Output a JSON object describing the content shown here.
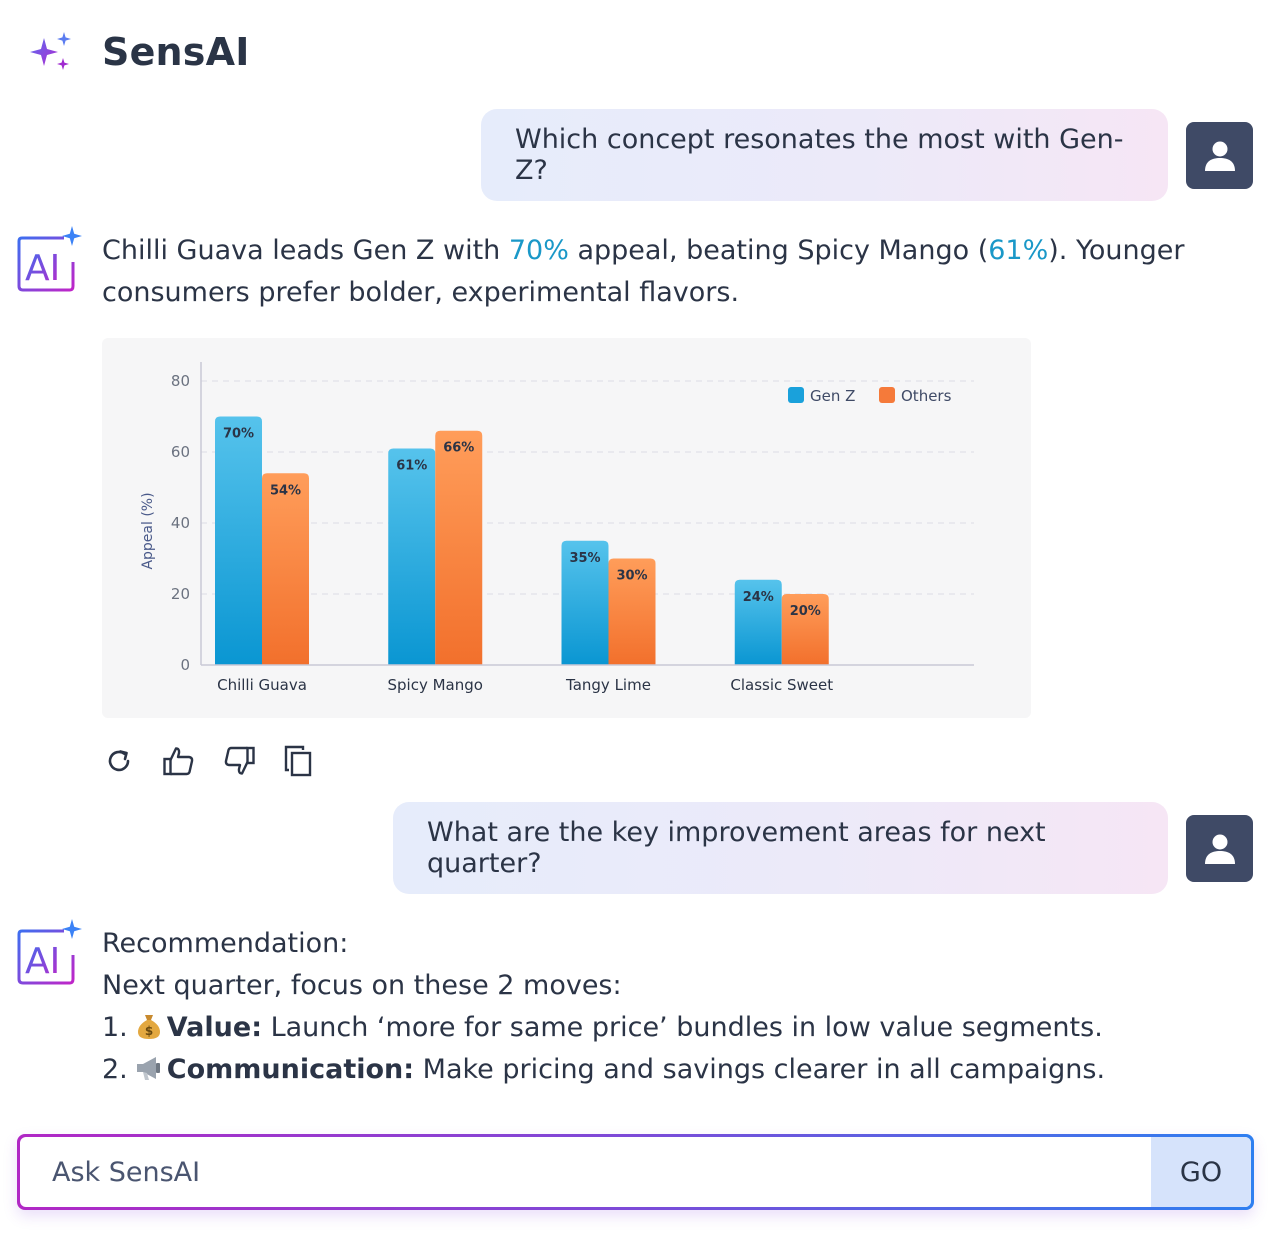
{
  "app": {
    "title": "SensAI"
  },
  "colors": {
    "accent_text": "#1a98c8",
    "gen_z": "#1aa1db",
    "others": "#f57a3a",
    "avatar_bg": "#3f4a66"
  },
  "conversation": {
    "q1": "Which concept resonates the most with Gen-Z?",
    "a1": {
      "part1": "Chilli Guava leads Gen Z with ",
      "pct1": "70%",
      "part2": " appeal, beating Spicy Mango (",
      "pct2": "61%",
      "part3": "). Younger consumers prefer bolder, experimental flavors."
    },
    "actions": [
      "refresh-icon",
      "thumbs-up-icon",
      "thumbs-down-icon",
      "copy-icon"
    ],
    "q2": "What are the key improvement areas for next quarter?",
    "a2": {
      "line1": "Recommendation:",
      "line2": "Next quarter, focus on these 2 moves:",
      "item1_num": "1.",
      "item1_bold": "Value:",
      "item1_text": " Launch ‘more for same price’ bundles in low value segments.",
      "item2_num": "2.",
      "item2_bold": "Communication:",
      "item2_text": " Make pricing and savings clearer in all campaigns."
    }
  },
  "input": {
    "placeholder": "Ask SensAI",
    "go_label": "GO"
  },
  "chart_data": {
    "type": "bar",
    "categories": [
      "Chilli Guava",
      "Spicy Mango",
      "Tangy Lime",
      "Classic Sweet"
    ],
    "series": [
      {
        "name": "Gen Z",
        "values": [
          70,
          61,
          35,
          24
        ],
        "labels": [
          "70%",
          "61%",
          "35%",
          "24%"
        ]
      },
      {
        "name": "Others",
        "values": [
          54,
          66,
          30,
          20
        ],
        "labels": [
          "54%",
          "66%",
          "30%",
          "20%"
        ]
      }
    ],
    "ylabel": "Appeal (%)",
    "ylim": [
      0,
      80
    ],
    "yticks": [
      0,
      20,
      40,
      60,
      80
    ],
    "grid": true,
    "legend": "top-right"
  }
}
